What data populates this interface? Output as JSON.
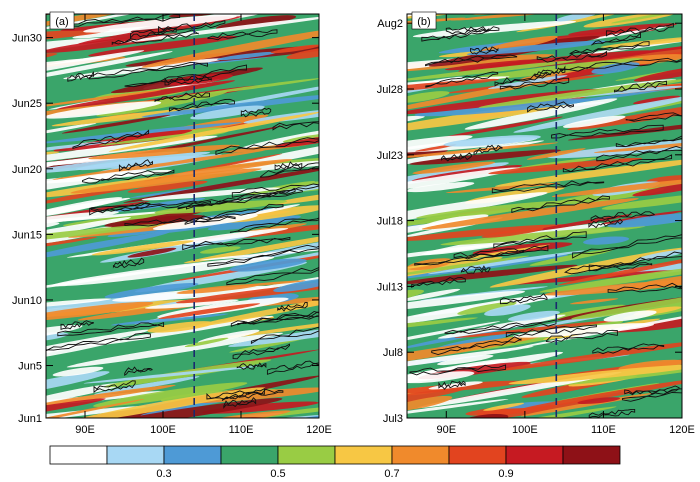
{
  "chart_data": {
    "type": "heatmap",
    "panels": [
      {
        "label": "(a)",
        "x_ticks": [
          "90E",
          "100E",
          "110E",
          "120E"
        ],
        "x_tick_values": [
          90,
          100,
          110,
          120
        ],
        "xlim": [
          85,
          120
        ],
        "y_ticks": [
          "Jun1",
          "Jun5",
          "Jun10",
          "Jun15",
          "Jun20",
          "Jun25",
          "Jun30"
        ],
        "y_tick_values": [
          1,
          5,
          10,
          15,
          20,
          25,
          30
        ],
        "ylim": [
          1,
          31.8
        ],
        "reference_line_x": 104
      },
      {
        "label": "(b)",
        "x_ticks": [
          "90E",
          "100E",
          "110E",
          "120E"
        ],
        "x_tick_values": [
          90,
          100,
          110,
          120
        ],
        "xlim": [
          85,
          120
        ],
        "y_ticks": [
          "Jul3",
          "Jul8",
          "Jul13",
          "Jul18",
          "Jul23",
          "Jul28",
          "Aug2"
        ],
        "y_tick_values": [
          3,
          8,
          13,
          18,
          23,
          28,
          33
        ],
        "ylim": [
          3,
          33.7
        ],
        "reference_line_x": 104
      }
    ],
    "colorbar": {
      "colors": [
        "#ffffff",
        "#a8d8f4",
        "#4e9ad6",
        "#3aa56a",
        "#99cc44",
        "#f7c744",
        "#f08a2c",
        "#e2441f",
        "#c61a22",
        "#8e1117"
      ],
      "labels": [
        "0.3",
        "0.5",
        "0.7",
        "0.9"
      ],
      "label_after_box": [
        1,
        3,
        5,
        7
      ]
    }
  }
}
